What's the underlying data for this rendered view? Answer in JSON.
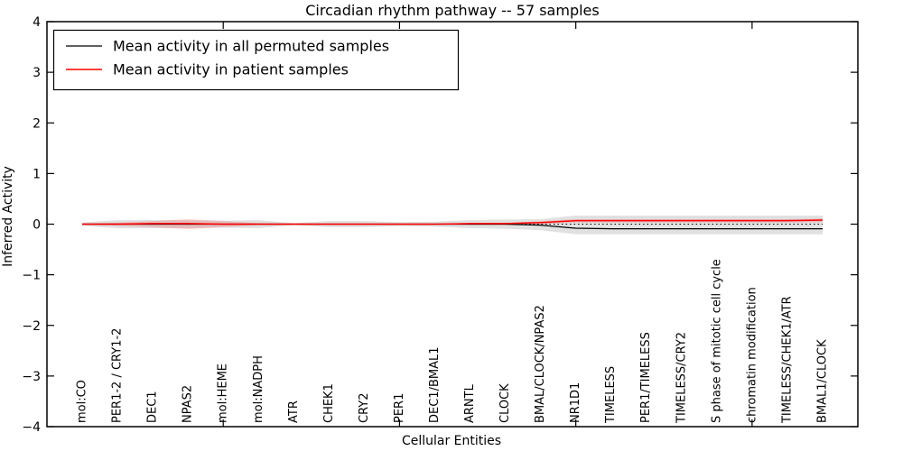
{
  "chart_data": {
    "type": "line",
    "title": "Circadian rhythm pathway -- 57 samples",
    "xlabel": "Cellular Entities",
    "ylabel": "Inferred Activity",
    "ylim": [
      -4,
      4
    ],
    "xlim": [
      0,
      23
    ],
    "ytick_values": [
      -4,
      -3,
      -2,
      -1,
      0,
      1,
      2,
      3,
      4
    ],
    "ytick_labels": [
      "−4",
      "−3",
      "−2",
      "−1",
      "0",
      "1",
      "2",
      "3",
      "4"
    ],
    "xtick_positions": [
      5,
      10,
      15,
      20
    ],
    "grid": false,
    "legend_position": "upper left",
    "background": "#ffffff",
    "frame_color": "#000000",
    "categories": [
      "mol:CO",
      "PER1-2 / CRY1-2",
      "DEC1",
      "NPAS2",
      "mol:HEME",
      "mol:NADPH",
      "ATR",
      "CHEK1",
      "CRY2",
      "PER1",
      "DEC1/BMAL1",
      "ARNTL",
      "CLOCK",
      "BMAL/CLOCK/NPAS2",
      "NR1D1",
      "TIMELESS",
      "PER1/TIMELESS",
      "TIMELESS/CRY2",
      "S phase of mitotic cell cycle",
      "chromatin modification",
      "TIMELESS/CHEK1/ATR",
      "BMAL1/CLOCK"
    ],
    "series": [
      {
        "name": "Mean activity in all permuted samples",
        "color": "#000000",
        "values": [
          0,
          0,
          0,
          0,
          0,
          0,
          0,
          0,
          0,
          0,
          0,
          0,
          0,
          -0.02,
          -0.08,
          -0.09,
          -0.09,
          -0.09,
          -0.09,
          -0.09,
          -0.09,
          -0.09
        ]
      },
      {
        "name": "Mean activity in patient samples",
        "color": "#ff0000",
        "values": [
          0,
          0,
          0.01,
          0.01,
          0,
          0,
          0,
          0,
          0,
          0,
          0,
          0.01,
          0.01,
          0.03,
          0.07,
          0.07,
          0.07,
          0.07,
          0.07,
          0.07,
          0.07,
          0.08
        ]
      }
    ],
    "bands": [
      {
        "name": "permuted-samples-spread-band",
        "color": "#e1e1e1",
        "upper": [
          0.03,
          0.08,
          0.08,
          0.08,
          0.07,
          0.08,
          0.02,
          0.06,
          0.06,
          0.04,
          0.05,
          0.08,
          0.09,
          0.1,
          0.17,
          0.17,
          0.17,
          0.17,
          0.17,
          0.17,
          0.17,
          0.17
        ],
        "lower": [
          -0.03,
          -0.08,
          -0.08,
          -0.08,
          -0.07,
          -0.08,
          -0.02,
          -0.06,
          -0.06,
          -0.04,
          -0.05,
          -0.08,
          -0.09,
          -0.12,
          -0.2,
          -0.2,
          -0.2,
          -0.2,
          -0.2,
          -0.2,
          -0.2,
          -0.2
        ]
      },
      {
        "name": "patient-samples-spread-band",
        "color": "rgba(255,0,0,0.16)",
        "upper": [
          0.01,
          0.03,
          0.06,
          0.1,
          0.06,
          0.02,
          0.01,
          0.01,
          0.01,
          0.01,
          0.01,
          0.02,
          0.02,
          0.06,
          0.1,
          0.1,
          0.1,
          0.1,
          0.1,
          0.1,
          0.1,
          0.11
        ],
        "lower": [
          -0.01,
          -0.03,
          -0.06,
          -0.1,
          -0.06,
          -0.02,
          -0.01,
          -0.01,
          -0.01,
          -0.01,
          -0.01,
          -0.02,
          -0.02,
          0.0,
          0.03,
          0.03,
          0.03,
          0.03,
          0.03,
          0.03,
          0.03,
          0.04
        ]
      }
    ],
    "zero_line": {
      "y": 0,
      "style": "dotted",
      "color": "#000000"
    }
  }
}
